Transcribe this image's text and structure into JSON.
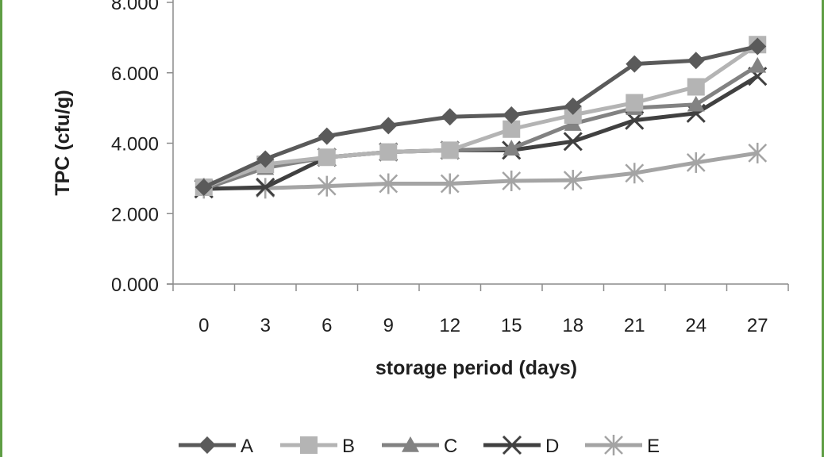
{
  "chart_data": {
    "type": "line",
    "xlabel": "storage period (days)",
    "ylabel": "TPC (cfu/g)",
    "x": [
      0,
      3,
      6,
      9,
      12,
      15,
      18,
      21,
      24,
      27
    ],
    "categories": [
      "0",
      "3",
      "6",
      "9",
      "12",
      "15",
      "18",
      "21",
      "24",
      "27"
    ],
    "ylim": [
      0,
      8
    ],
    "yticks": [
      0,
      2,
      4,
      6,
      8
    ],
    "ytick_labels": [
      "0.000",
      "2.000",
      "4.000",
      "6.000",
      "8.000"
    ],
    "grid": false,
    "legend_position": "bottom",
    "series": [
      {
        "name": "A",
        "marker": "diamond",
        "color": "#5a5a5a",
        "values": [
          2.75,
          3.55,
          4.2,
          4.5,
          4.75,
          4.8,
          5.05,
          6.25,
          6.35,
          6.75
        ]
      },
      {
        "name": "B",
        "marker": "square",
        "color": "#b4b4b4",
        "values": [
          2.75,
          3.4,
          3.6,
          3.75,
          3.8,
          4.4,
          4.8,
          5.15,
          5.6,
          6.8
        ]
      },
      {
        "name": "C",
        "marker": "triangle",
        "color": "#828282",
        "values": [
          2.7,
          3.3,
          3.6,
          3.75,
          3.8,
          3.85,
          4.55,
          5.0,
          5.1,
          6.2
        ]
      },
      {
        "name": "D",
        "marker": "x",
        "color": "#404040",
        "values": [
          2.7,
          2.75,
          3.6,
          3.75,
          3.8,
          3.8,
          4.05,
          4.65,
          4.85,
          5.9
        ]
      },
      {
        "name": "E",
        "marker": "asterisk",
        "color": "#a4a4a4",
        "values": [
          2.72,
          2.72,
          2.78,
          2.85,
          2.85,
          2.93,
          2.95,
          3.15,
          3.45,
          3.72
        ]
      }
    ]
  }
}
